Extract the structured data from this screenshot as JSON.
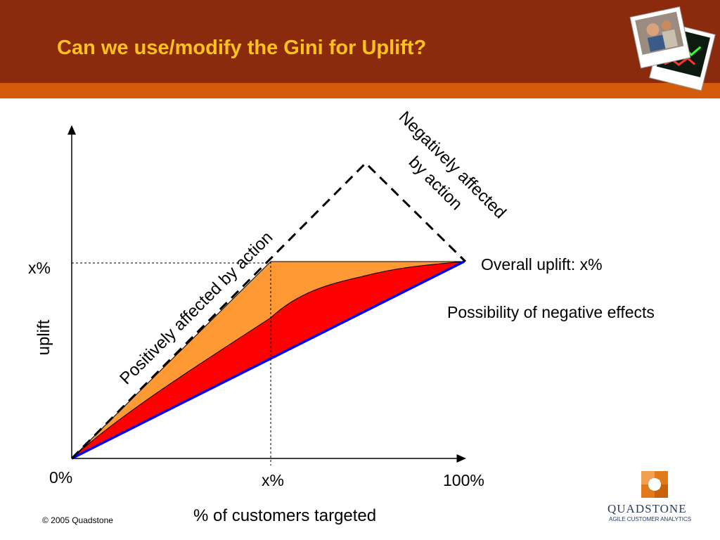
{
  "slide": {
    "title": "Can we use/modify the Gini for Uplift?",
    "footer": "© 2005 Quadstone",
    "logo": {
      "name": "QUADSTONE",
      "tagline": "AGILE CUSTOMER ANALYTICS"
    }
  },
  "diagram": {
    "y_axis_label": "uplift",
    "y_tick": "x%",
    "x_label": "% of customers targeted",
    "x_ticks": [
      "0%",
      "x%",
      "100%"
    ],
    "annotations": {
      "positive": "Positively affected by action",
      "negative_line1": "Negatively affected",
      "negative_line2": "by action",
      "overall": "Overall uplift: x%",
      "possibility": "Possibility of negative effects"
    },
    "colors": {
      "header": "#8b2a0c",
      "stripe": "#d45a0c",
      "title": "#ffc21d",
      "orange_region": "#ff9933",
      "red_region": "#ff0000",
      "baseline": "#0000ff"
    }
  }
}
